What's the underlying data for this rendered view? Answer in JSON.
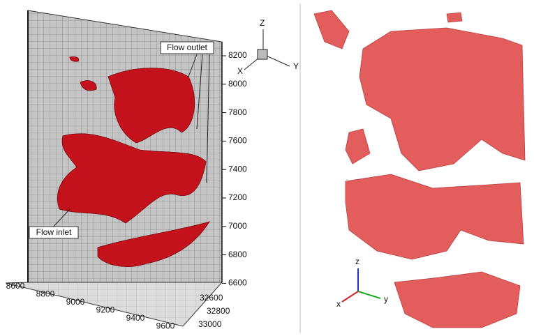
{
  "left_panel": {
    "annotations": {
      "outlet": "Flow outlet",
      "inlet": "Flow inlet"
    },
    "z_ticks": [
      8200,
      8000,
      7800,
      7600,
      7400,
      7200,
      7000,
      6800,
      6600
    ],
    "x_ticks": [
      8600,
      8800,
      9000,
      9200,
      9400,
      9600
    ],
    "y_ticks": [
      32600,
      32800,
      33000
    ],
    "triad": {
      "z": "Z",
      "x": "X",
      "y": "Y"
    }
  },
  "right_panel": {
    "triad": {
      "z": "z",
      "x": "x",
      "y": "y"
    }
  }
}
